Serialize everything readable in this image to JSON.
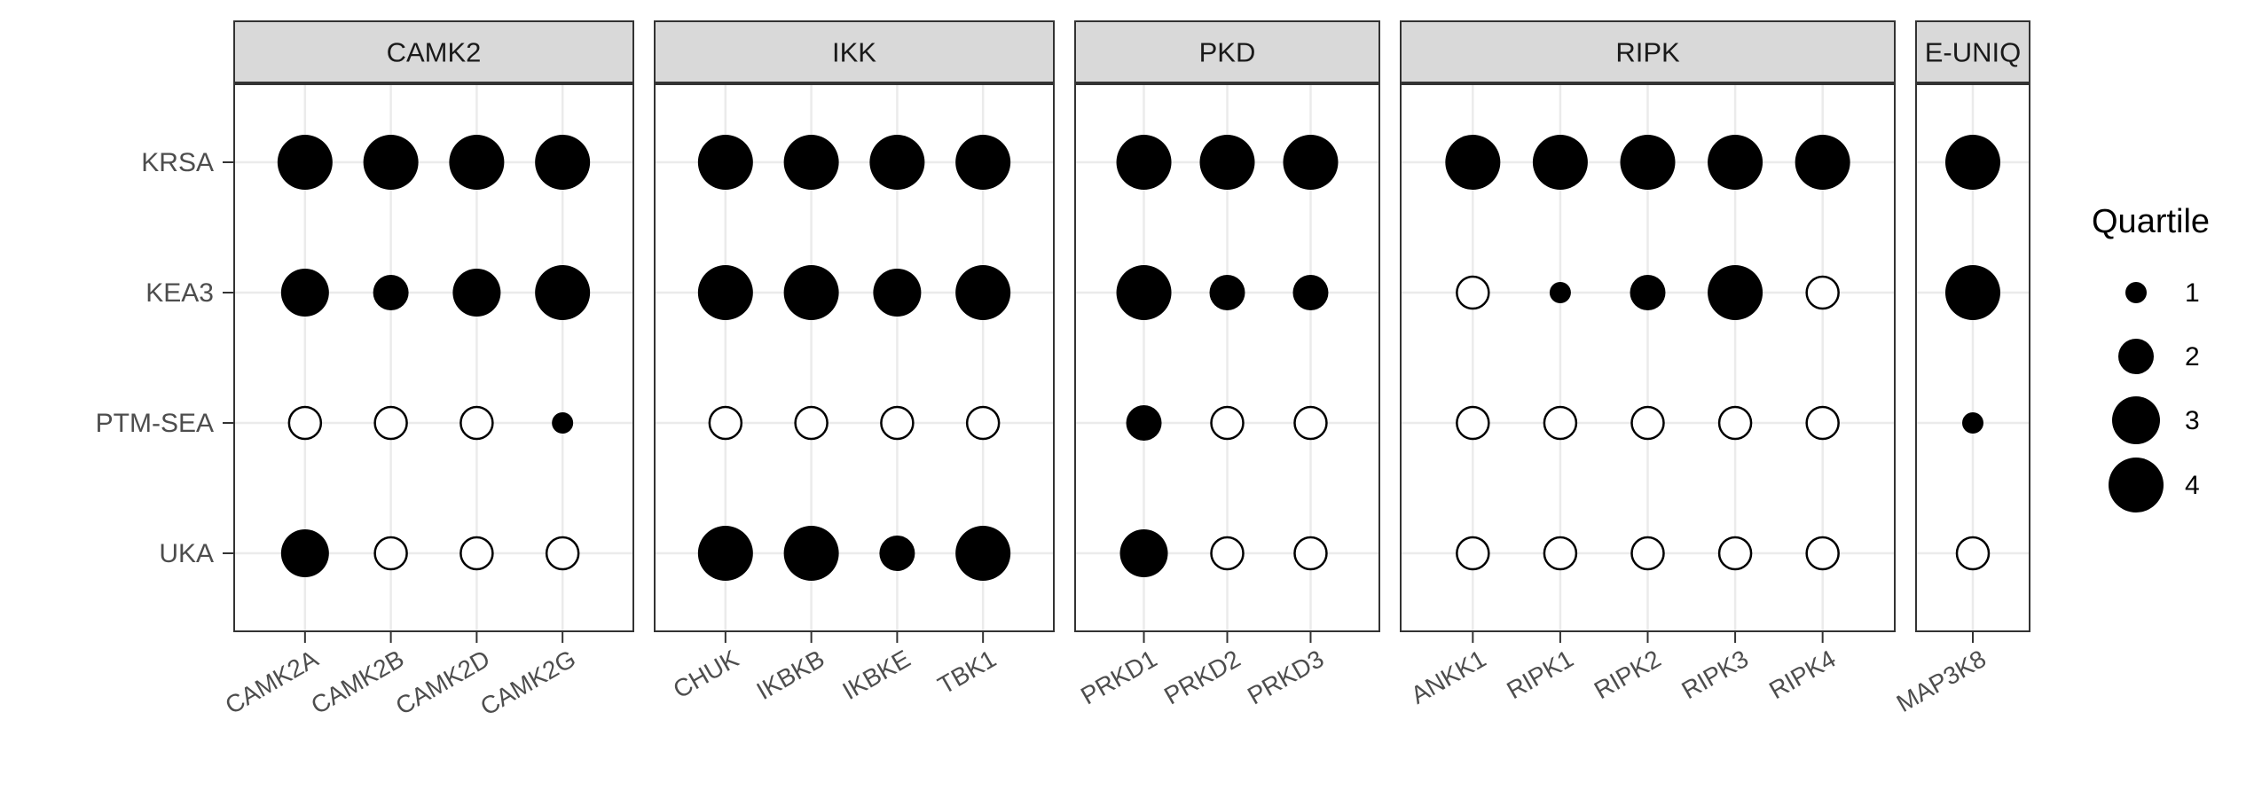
{
  "chart_data": {
    "type": "scatter",
    "subtype": "faceted dot plot",
    "y_categories": [
      "KRSA",
      "KEA3",
      "PTM-SEA",
      "UKA"
    ],
    "facets": [
      {
        "label": "CAMK2",
        "x_categories": [
          "CAMK2A",
          "CAMK2B",
          "CAMK2D",
          "CAMK2G"
        ],
        "points": [
          {
            "x": "CAMK2A",
            "y": "KRSA",
            "quartile": 4
          },
          {
            "x": "CAMK2B",
            "y": "KRSA",
            "quartile": 4
          },
          {
            "x": "CAMK2D",
            "y": "KRSA",
            "quartile": 4
          },
          {
            "x": "CAMK2G",
            "y": "KRSA",
            "quartile": 4
          },
          {
            "x": "CAMK2A",
            "y": "KEA3",
            "quartile": 3
          },
          {
            "x": "CAMK2B",
            "y": "KEA3",
            "quartile": 2
          },
          {
            "x": "CAMK2D",
            "y": "KEA3",
            "quartile": 3
          },
          {
            "x": "CAMK2G",
            "y": "KEA3",
            "quartile": 4
          },
          {
            "x": "CAMK2A",
            "y": "PTM-SEA",
            "quartile": null
          },
          {
            "x": "CAMK2B",
            "y": "PTM-SEA",
            "quartile": null
          },
          {
            "x": "CAMK2D",
            "y": "PTM-SEA",
            "quartile": null
          },
          {
            "x": "CAMK2G",
            "y": "PTM-SEA",
            "quartile": 1
          },
          {
            "x": "CAMK2A",
            "y": "UKA",
            "quartile": 3
          },
          {
            "x": "CAMK2B",
            "y": "UKA",
            "quartile": null
          },
          {
            "x": "CAMK2D",
            "y": "UKA",
            "quartile": null
          },
          {
            "x": "CAMK2G",
            "y": "UKA",
            "quartile": null
          }
        ]
      },
      {
        "label": "IKK",
        "x_categories": [
          "CHUK",
          "IKBKB",
          "IKBKE",
          "TBK1"
        ],
        "points": [
          {
            "x": "CHUK",
            "y": "KRSA",
            "quartile": 4
          },
          {
            "x": "IKBKB",
            "y": "KRSA",
            "quartile": 4
          },
          {
            "x": "IKBKE",
            "y": "KRSA",
            "quartile": 4
          },
          {
            "x": "TBK1",
            "y": "KRSA",
            "quartile": 4
          },
          {
            "x": "CHUK",
            "y": "KEA3",
            "quartile": 4
          },
          {
            "x": "IKBKB",
            "y": "KEA3",
            "quartile": 4
          },
          {
            "x": "IKBKE",
            "y": "KEA3",
            "quartile": 3
          },
          {
            "x": "TBK1",
            "y": "KEA3",
            "quartile": 4
          },
          {
            "x": "CHUK",
            "y": "PTM-SEA",
            "quartile": null
          },
          {
            "x": "IKBKB",
            "y": "PTM-SEA",
            "quartile": null
          },
          {
            "x": "IKBKE",
            "y": "PTM-SEA",
            "quartile": null
          },
          {
            "x": "TBK1",
            "y": "PTM-SEA",
            "quartile": null
          },
          {
            "x": "CHUK",
            "y": "UKA",
            "quartile": 4
          },
          {
            "x": "IKBKB",
            "y": "UKA",
            "quartile": 4
          },
          {
            "x": "IKBKE",
            "y": "UKA",
            "quartile": 2
          },
          {
            "x": "TBK1",
            "y": "UKA",
            "quartile": 4
          }
        ]
      },
      {
        "label": "PKD",
        "x_categories": [
          "PRKD1",
          "PRKD2",
          "PRKD3"
        ],
        "points": [
          {
            "x": "PRKD1",
            "y": "KRSA",
            "quartile": 4
          },
          {
            "x": "PRKD2",
            "y": "KRSA",
            "quartile": 4
          },
          {
            "x": "PRKD3",
            "y": "KRSA",
            "quartile": 4
          },
          {
            "x": "PRKD1",
            "y": "KEA3",
            "quartile": 4
          },
          {
            "x": "PRKD2",
            "y": "KEA3",
            "quartile": 2
          },
          {
            "x": "PRKD3",
            "y": "KEA3",
            "quartile": 2
          },
          {
            "x": "PRKD1",
            "y": "PTM-SEA",
            "quartile": 2
          },
          {
            "x": "PRKD2",
            "y": "PTM-SEA",
            "quartile": null
          },
          {
            "x": "PRKD3",
            "y": "PTM-SEA",
            "quartile": null
          },
          {
            "x": "PRKD1",
            "y": "UKA",
            "quartile": 3
          },
          {
            "x": "PRKD2",
            "y": "UKA",
            "quartile": null
          },
          {
            "x": "PRKD3",
            "y": "UKA",
            "quartile": null
          }
        ]
      },
      {
        "label": "RIPK",
        "x_categories": [
          "ANKK1",
          "RIPK1",
          "RIPK2",
          "RIPK3",
          "RIPK4"
        ],
        "points": [
          {
            "x": "ANKK1",
            "y": "KRSA",
            "quartile": 4
          },
          {
            "x": "RIPK1",
            "y": "KRSA",
            "quartile": 4
          },
          {
            "x": "RIPK2",
            "y": "KRSA",
            "quartile": 4
          },
          {
            "x": "RIPK3",
            "y": "KRSA",
            "quartile": 4
          },
          {
            "x": "RIPK4",
            "y": "KRSA",
            "quartile": 4
          },
          {
            "x": "ANKK1",
            "y": "KEA3",
            "quartile": null
          },
          {
            "x": "RIPK1",
            "y": "KEA3",
            "quartile": 1
          },
          {
            "x": "RIPK2",
            "y": "KEA3",
            "quartile": 2
          },
          {
            "x": "RIPK3",
            "y": "KEA3",
            "quartile": 4
          },
          {
            "x": "RIPK4",
            "y": "KEA3",
            "quartile": null
          },
          {
            "x": "ANKK1",
            "y": "PTM-SEA",
            "quartile": null
          },
          {
            "x": "RIPK1",
            "y": "PTM-SEA",
            "quartile": null
          },
          {
            "x": "RIPK2",
            "y": "PTM-SEA",
            "quartile": null
          },
          {
            "x": "RIPK3",
            "y": "PTM-SEA",
            "quartile": null
          },
          {
            "x": "RIPK4",
            "y": "PTM-SEA",
            "quartile": null
          },
          {
            "x": "ANKK1",
            "y": "UKA",
            "quartile": null
          },
          {
            "x": "RIPK1",
            "y": "UKA",
            "quartile": null
          },
          {
            "x": "RIPK2",
            "y": "UKA",
            "quartile": null
          },
          {
            "x": "RIPK3",
            "y": "UKA",
            "quartile": null
          },
          {
            "x": "RIPK4",
            "y": "UKA",
            "quartile": null
          }
        ]
      },
      {
        "label": "E-UNIQ",
        "x_categories": [
          "MAP3K8"
        ],
        "points": [
          {
            "x": "MAP3K8",
            "y": "KRSA",
            "quartile": 4
          },
          {
            "x": "MAP3K8",
            "y": "KEA3",
            "quartile": 4
          },
          {
            "x": "MAP3K8",
            "y": "PTM-SEA",
            "quartile": 1
          },
          {
            "x": "MAP3K8",
            "y": "UKA",
            "quartile": null
          }
        ]
      }
    ],
    "legend": {
      "title": "Quartile",
      "entries": [
        1,
        2,
        3,
        4
      ],
      "placement": "right"
    },
    "grid": true,
    "title": "",
    "xlabel": "",
    "ylabel": ""
  },
  "colors": {
    "point": "#000000",
    "strip_fill": "#d9d9d9",
    "strip_border": "#333333",
    "panel_border": "#333333",
    "grid": "#ebebeb",
    "tick_text": "#4d4d4d",
    "strip_text": "#1a1a1a"
  }
}
